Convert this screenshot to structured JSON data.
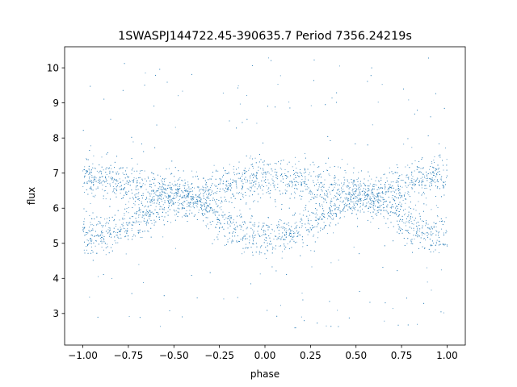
{
  "chart_data": {
    "type": "scatter",
    "title": "1SWASPJ144722.45-390635.7 Period 7356.24219s",
    "xlabel": "phase",
    "ylabel": "flux",
    "xlim": [
      -1.1,
      1.1
    ],
    "ylim": [
      2.1,
      10.6
    ],
    "xticks": [
      -1.0,
      -0.75,
      -0.5,
      -0.25,
      0.0,
      0.25,
      0.5,
      0.75,
      1.0
    ],
    "xtick_labels": [
      "−1.00",
      "−0.75",
      "−0.50",
      "−0.25",
      "0.00",
      "0.25",
      "0.50",
      "0.75",
      "1.00"
    ],
    "yticks": [
      3,
      4,
      5,
      6,
      7,
      8,
      9,
      10
    ],
    "ytick_labels": [
      "3",
      "4",
      "5",
      "6",
      "7",
      "8",
      "9",
      "10"
    ],
    "grid": false,
    "point_color": "#1f77b4",
    "series": [
      {
        "description_of_shape": "upper band",
        "x": [
          -1.0,
          -0.9,
          -0.8,
          -0.7,
          -0.6,
          -0.5,
          -0.4,
          -0.3,
          -0.2,
          -0.1,
          0.0,
          0.1,
          0.2,
          0.3,
          0.4,
          0.5,
          0.6,
          0.7,
          0.8,
          0.9,
          1.0
        ],
        "values": [
          6.85,
          6.85,
          6.8,
          6.7,
          6.55,
          6.4,
          6.3,
          6.5,
          6.7,
          6.8,
          6.85,
          6.85,
          6.8,
          6.7,
          6.55,
          6.4,
          6.3,
          6.5,
          6.7,
          6.8,
          6.85
        ]
      },
      {
        "description_of_shape": "lower band",
        "x": [
          -1.0,
          -0.9,
          -0.8,
          -0.7,
          -0.6,
          -0.5,
          -0.4,
          -0.3,
          -0.2,
          -0.1,
          0.0,
          0.1,
          0.2,
          0.3,
          0.4,
          0.5,
          0.6,
          0.7,
          0.8,
          0.9,
          1.0
        ],
        "values": [
          5.2,
          5.25,
          5.4,
          5.7,
          6.0,
          6.3,
          6.3,
          5.9,
          5.5,
          5.3,
          5.2,
          5.25,
          5.4,
          5.7,
          6.0,
          6.3,
          6.3,
          5.9,
          5.5,
          5.3,
          5.2
        ]
      }
    ]
  }
}
